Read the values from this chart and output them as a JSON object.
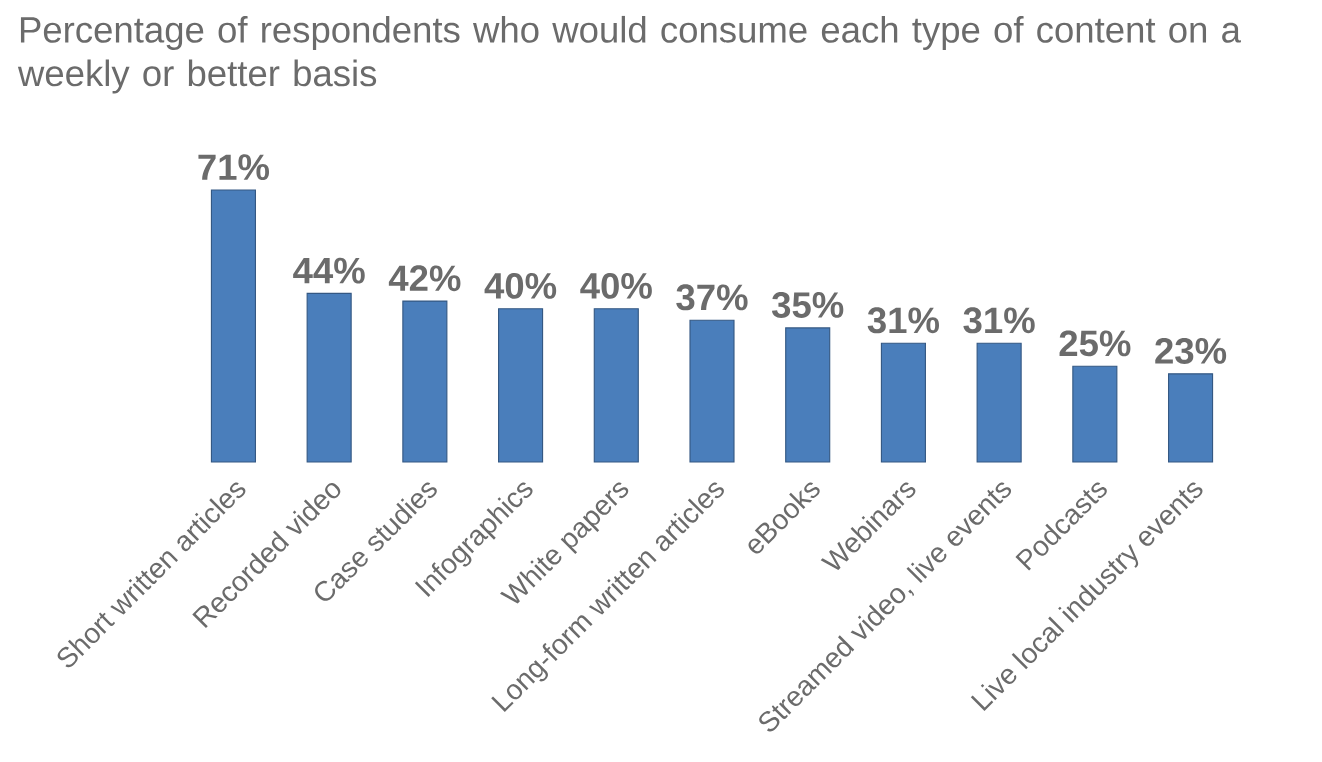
{
  "chart_data": {
    "type": "bar",
    "title": "Percentage of respondents who would consume each type of content on a weekly or better basis",
    "categories": [
      "Short written articles",
      "Recorded video",
      "Case studies",
      "Infographics",
      "White papers",
      "Long-form written articles",
      "eBooks",
      "Webinars",
      "Streamed video, live events",
      "Podcasts",
      "Live local industry events"
    ],
    "values": [
      71,
      44,
      42,
      40,
      40,
      37,
      35,
      31,
      31,
      25,
      23
    ],
    "value_labels": [
      "71%",
      "44%",
      "42%",
      "40%",
      "40%",
      "37%",
      "35%",
      "31%",
      "31%",
      "25%",
      "23%"
    ],
    "color": "#4a7ebb"
  }
}
